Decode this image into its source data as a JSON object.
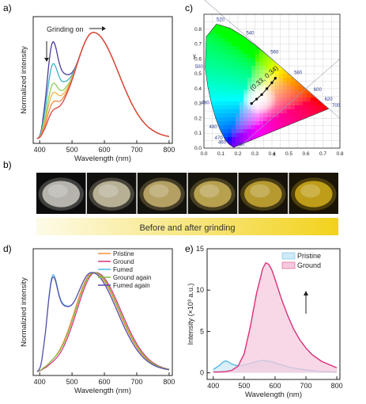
{
  "panel_labels": {
    "a": "a)",
    "b": "b)",
    "c": "c)",
    "d": "d)",
    "e": "e)"
  },
  "strip": {
    "caption": "Before and after grinding",
    "gradient_from": "#fdfbe8",
    "gradient_to": "#f2d21c"
  },
  "photos": [
    {
      "pile_color": "#dcdad2",
      "bg": "#0c0c0c"
    },
    {
      "pile_color": "#ded6b4",
      "bg": "#121110"
    },
    {
      "pile_color": "#d9c178",
      "bg": "#14120d"
    },
    {
      "pile_color": "#dcc15e",
      "bg": "#17140c"
    },
    {
      "pile_color": "#dcba38",
      "bg": "#17130a"
    },
    {
      "pile_color": "#e6bd1d",
      "bg": "#1a1406"
    }
  ],
  "chart_data": [
    {
      "panel": "a",
      "type": "line",
      "xlabel": "Wavelength (nm)",
      "ylabel": "Normalized intensity",
      "xlim": [
        380,
        810
      ],
      "xticks": [
        400,
        500,
        600,
        700,
        800
      ],
      "annotation": "Grinding on",
      "series": [
        {
          "color": "#4a3a9a",
          "hb": 0.74
        },
        {
          "color": "#3bb2c8",
          "hb": 0.55
        },
        {
          "color": "#8fcf5a",
          "hb": 0.38
        },
        {
          "color": "#e9b64c",
          "hb": 0.3
        },
        {
          "color": "#e88a3e",
          "hb": 0.22
        },
        {
          "color": "#e0413d",
          "hb": 0.15
        }
      ]
    },
    {
      "panel": "c",
      "type": "scatter",
      "xlabel": "x",
      "ylabel": "y",
      "xlim": [
        0.0,
        0.8
      ],
      "ylim": [
        0.0,
        0.9
      ],
      "xticks": [
        "0.0",
        "0.1",
        "0.2",
        "0.3",
        "0.4",
        "0.5",
        "0.6",
        "0.7",
        "0.8"
      ],
      "yticks": [
        "0.0",
        "0.1",
        "0.2",
        "0.3",
        "0.4",
        "0.5",
        "0.6",
        "0.7",
        "0.8"
      ],
      "wavelength_labels": [
        {
          "nm": "380",
          "x": 0.174,
          "y": 0.005
        },
        {
          "nm": "460",
          "x": 0.144,
          "y": 0.03
        },
        {
          "nm": "470",
          "x": 0.124,
          "y": 0.058
        },
        {
          "nm": "480",
          "x": 0.091,
          "y": 0.133
        },
        {
          "nm": "490",
          "x": 0.045,
          "y": 0.295
        },
        {
          "nm": "500",
          "x": 0.008,
          "y": 0.538
        },
        {
          "nm": "520",
          "x": 0.074,
          "y": 0.834
        },
        {
          "nm": "540",
          "x": 0.23,
          "y": 0.754
        },
        {
          "nm": "560",
          "x": 0.373,
          "y": 0.625
        },
        {
          "nm": "580",
          "x": 0.512,
          "y": 0.487
        },
        {
          "nm": "600",
          "x": 0.627,
          "y": 0.372
        },
        {
          "nm": "620",
          "x": 0.691,
          "y": 0.308
        },
        {
          "nm": "700",
          "x": 0.735,
          "y": 0.265
        }
      ],
      "points": [
        {
          "x": 0.28,
          "y": 0.3
        },
        {
          "x": 0.31,
          "y": 0.33
        },
        {
          "x": 0.34,
          "y": 0.36
        },
        {
          "x": 0.37,
          "y": 0.4
        },
        {
          "x": 0.4,
          "y": 0.44
        },
        {
          "x": 0.42,
          "y": 0.47
        }
      ],
      "annotation": "(0.33, 0.34)"
    },
    {
      "panel": "d",
      "type": "line",
      "xlabel": "Wavelength (nm)",
      "ylabel": "Normalizied intensity",
      "xlim": [
        380,
        810
      ],
      "xticks": [
        400,
        500,
        600,
        700,
        800
      ],
      "legend_position": "top-right",
      "series": [
        {
          "name": "Pristine",
          "color": "#f2913d",
          "hb": 0.02,
          "peak": 565
        },
        {
          "name": "Ground",
          "color": "#d8307a",
          "hb": 0.02,
          "peak": 572
        },
        {
          "name": "Fumed",
          "color": "#4cb8e6",
          "hb": 0.78,
          "peak": 560
        },
        {
          "name": "Ground again",
          "color": "#7cbc45",
          "hb": 0.03,
          "peak": 568
        },
        {
          "name": "Fumed again",
          "color": "#5a49a8",
          "hb": 0.76,
          "peak": 560
        }
      ]
    },
    {
      "panel": "e",
      "type": "area",
      "xlabel": "Wavelength (nm)",
      "ylabel": "Intensity (×10³ a.u.)",
      "xlim": [
        380,
        810
      ],
      "ylim": [
        -0.8,
        15
      ],
      "xticks": [
        400,
        500,
        600,
        700,
        800
      ],
      "yticks": [
        0,
        5,
        10,
        15
      ],
      "series": [
        {
          "name": "Pristine",
          "color": "#57b8e4",
          "fill": "#cfe9f6",
          "x": [
            400,
            420,
            430,
            440,
            450,
            460,
            480,
            500,
            520,
            540,
            560,
            580,
            600,
            620,
            650,
            700,
            750,
            800
          ],
          "y": [
            0.4,
            0.9,
            1.25,
            1.45,
            1.3,
            1.05,
            0.85,
            0.95,
            1.15,
            1.35,
            1.5,
            1.4,
            1.2,
            0.95,
            0.65,
            0.35,
            0.15,
            0.1
          ]
        },
        {
          "name": "Ground",
          "color": "#d8307a",
          "fill": "#f6c9dd",
          "x": [
            400,
            420,
            440,
            460,
            480,
            500,
            520,
            540,
            560,
            570,
            580,
            590,
            600,
            620,
            640,
            660,
            680,
            700,
            720,
            750,
            800
          ],
          "y": [
            0.1,
            0.1,
            0.15,
            0.3,
            0.8,
            2.3,
            5.6,
            9.6,
            12.6,
            13.3,
            13.1,
            12.4,
            11.3,
            9.0,
            7.0,
            5.3,
            4.0,
            3.0,
            2.2,
            1.4,
            0.6
          ]
        }
      ]
    }
  ]
}
